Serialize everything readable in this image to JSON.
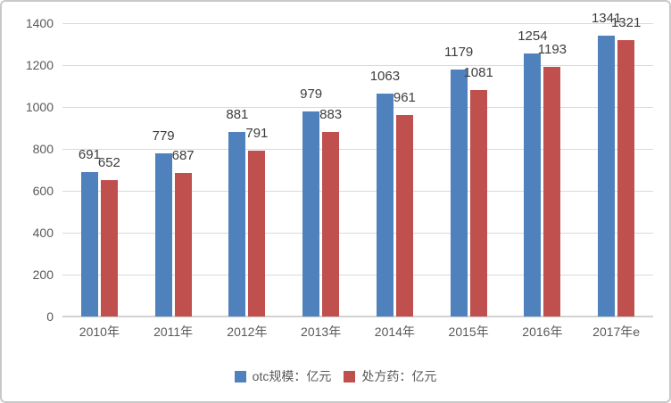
{
  "chart_data": {
    "type": "bar",
    "categories": [
      "2010年",
      "2011年",
      "2012年",
      "2013年",
      "2014年",
      "2015年",
      "2016年",
      "2017年e"
    ],
    "series": [
      {
        "name": "otc规模：亿元",
        "color": "#4F81BD",
        "values": [
          691,
          779,
          881,
          979,
          1063,
          1179,
          1254,
          1341
        ]
      },
      {
        "name": "处方药：亿元",
        "color": "#C0504D",
        "values": [
          652,
          687,
          791,
          883,
          961,
          1081,
          1193,
          1321
        ]
      }
    ],
    "title": "",
    "xlabel": "",
    "ylabel": "",
    "ylim": [
      0,
      1400
    ],
    "yticks": [
      0,
      200,
      400,
      600,
      800,
      1000,
      1200,
      1400
    ],
    "grid": true,
    "legend_position": "bottom",
    "data_labels": true
  },
  "colors": {
    "series_otc": "#4F81BD",
    "series_chufangyao": "#C0504D",
    "gridline": "#DADADA",
    "axis_text": "#595959",
    "data_label_text": "#3D3D3D",
    "frame_border": "#C9C9C9",
    "background": "#FFFFFF"
  }
}
